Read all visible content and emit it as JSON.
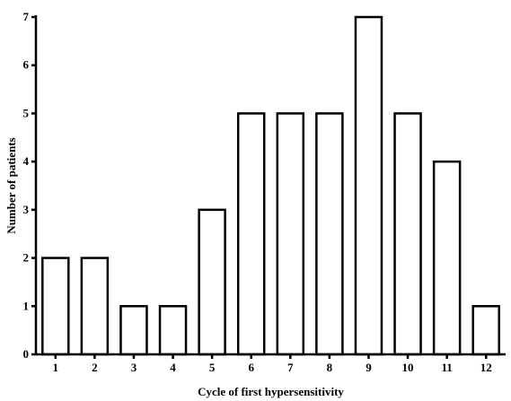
{
  "chart_data": {
    "type": "bar",
    "title": "",
    "xlabel": "Cycle of first hypersensitivity",
    "ylabel": "Number of patients",
    "categories": [
      "1",
      "2",
      "3",
      "4",
      "5",
      "6",
      "7",
      "8",
      "9",
      "10",
      "11",
      "12"
    ],
    "values": [
      2,
      2,
      1,
      1,
      3,
      5,
      5,
      5,
      7,
      5,
      4,
      1
    ],
    "ylim": [
      0,
      7
    ],
    "yticks": [
      "0",
      "1",
      "2",
      "3",
      "4",
      "5",
      "6",
      "7"
    ],
    "grid": false,
    "legend": "none",
    "colors": {
      "bar_fill": "#ffffff",
      "bar_stroke": "#000000"
    }
  }
}
